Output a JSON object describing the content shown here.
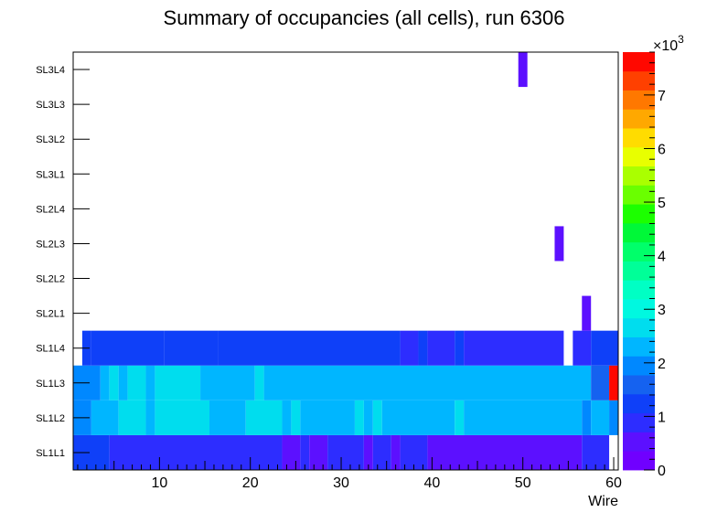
{
  "chart_data": {
    "type": "heatmap",
    "title": "Summary of occupancies (all cells),      run 6306",
    "xlabel": "Wire",
    "xlim": [
      0.5,
      60.5
    ],
    "x_ticks": [
      10,
      20,
      30,
      40,
      50,
      60
    ],
    "x_tick_labels": [
      "10",
      "20",
      "30",
      "40",
      "50",
      "60"
    ],
    "y_categories": [
      "SL1L1",
      "SL1L2",
      "SL1L3",
      "SL1L4",
      "SL2L1",
      "SL2L2",
      "SL2L3",
      "SL2L4",
      "SL3L1",
      "SL3L2",
      "SL3L3",
      "SL3L4"
    ],
    "z_range": [
      0,
      7800
    ],
    "z_ticks": [
      0,
      1000,
      2000,
      3000,
      4000,
      5000,
      6000,
      7000
    ],
    "z_tick_labels": [
      "0",
      "1",
      "2",
      "3",
      "4",
      "5",
      "6",
      "7"
    ],
    "z_multiplier_base": "×10",
    "z_multiplier_exp": "3",
    "palette": [
      "#7000ff",
      "#5c10ff",
      "#2d2dff",
      "#0f40f8",
      "#1562f0",
      "#0088ff",
      "#00b6ff",
      "#00ddee",
      "#00f8e0",
      "#00ffc4",
      "#00ff98",
      "#00ff6a",
      "#00f838",
      "#1cff00",
      "#6aff00",
      "#aaff00",
      "#e8ff00",
      "#ffdc00",
      "#ffa800",
      "#ff7800",
      "#ff4000",
      "#ff0800"
    ],
    "rows": [
      {
        "layer": "SL1L1",
        "segments": [
          [
            1,
            4,
            1150
          ],
          [
            5,
            23,
            830
          ],
          [
            24,
            25,
            500
          ],
          [
            26,
            26,
            830
          ],
          [
            27,
            28,
            500
          ],
          [
            29,
            32,
            830
          ],
          [
            33,
            33,
            500
          ],
          [
            34,
            35,
            830
          ],
          [
            36,
            36,
            500
          ],
          [
            37,
            39,
            830
          ],
          [
            40,
            56,
            500
          ],
          [
            57,
            59,
            830
          ]
        ]
      },
      {
        "layer": "SL1L2",
        "segments": [
          [
            1,
            2,
            2100
          ],
          [
            3,
            5,
            2450
          ],
          [
            6,
            8,
            2800
          ],
          [
            9,
            9,
            2450
          ],
          [
            10,
            15,
            2800
          ],
          [
            16,
            19,
            2450
          ],
          [
            20,
            23,
            2800
          ],
          [
            24,
            24,
            2450
          ],
          [
            25,
            25,
            2800
          ],
          [
            26,
            31,
            2450
          ],
          [
            32,
            32,
            2800
          ],
          [
            33,
            33,
            2450
          ],
          [
            34,
            34,
            2800
          ],
          [
            35,
            42,
            2450
          ],
          [
            43,
            43,
            2800
          ],
          [
            44,
            56,
            2450
          ],
          [
            57,
            57,
            2100
          ],
          [
            58,
            59,
            2450
          ],
          [
            60,
            60,
            2100
          ]
        ]
      },
      {
        "layer": "SL1L3",
        "segments": [
          [
            1,
            3,
            2100
          ],
          [
            4,
            4,
            2450
          ],
          [
            5,
            5,
            2800
          ],
          [
            6,
            6,
            2450
          ],
          [
            7,
            8,
            2800
          ],
          [
            9,
            9,
            2450
          ],
          [
            10,
            14,
            2800
          ],
          [
            15,
            20,
            2450
          ],
          [
            21,
            21,
            2800
          ],
          [
            22,
            57,
            2450
          ],
          [
            58,
            59,
            1700
          ],
          [
            60,
            60,
            7750
          ]
        ]
      },
      {
        "layer": "SL1L4",
        "segments": [
          [
            2,
            2,
            1400
          ],
          [
            3,
            10,
            1150
          ],
          [
            11,
            16,
            1400
          ],
          [
            17,
            36,
            1150
          ],
          [
            37,
            38,
            830
          ],
          [
            39,
            39,
            1150
          ],
          [
            40,
            42,
            830
          ],
          [
            43,
            43,
            1150
          ],
          [
            44,
            54,
            830
          ],
          [
            56,
            57,
            830
          ],
          [
            58,
            60,
            1150
          ]
        ]
      },
      {
        "layer": "SL2L1",
        "segments": [
          [
            57,
            57,
            500
          ]
        ]
      },
      {
        "layer": "SL2L2",
        "segments": []
      },
      {
        "layer": "SL2L3",
        "segments": [
          [
            54,
            54,
            500
          ]
        ]
      },
      {
        "layer": "SL2L4",
        "segments": []
      },
      {
        "layer": "SL3L1",
        "segments": []
      },
      {
        "layer": "SL3L2",
        "segments": []
      },
      {
        "layer": "SL3L3",
        "segments": []
      },
      {
        "layer": "SL3L4",
        "segments": [
          [
            50,
            50,
            500
          ]
        ]
      }
    ]
  }
}
